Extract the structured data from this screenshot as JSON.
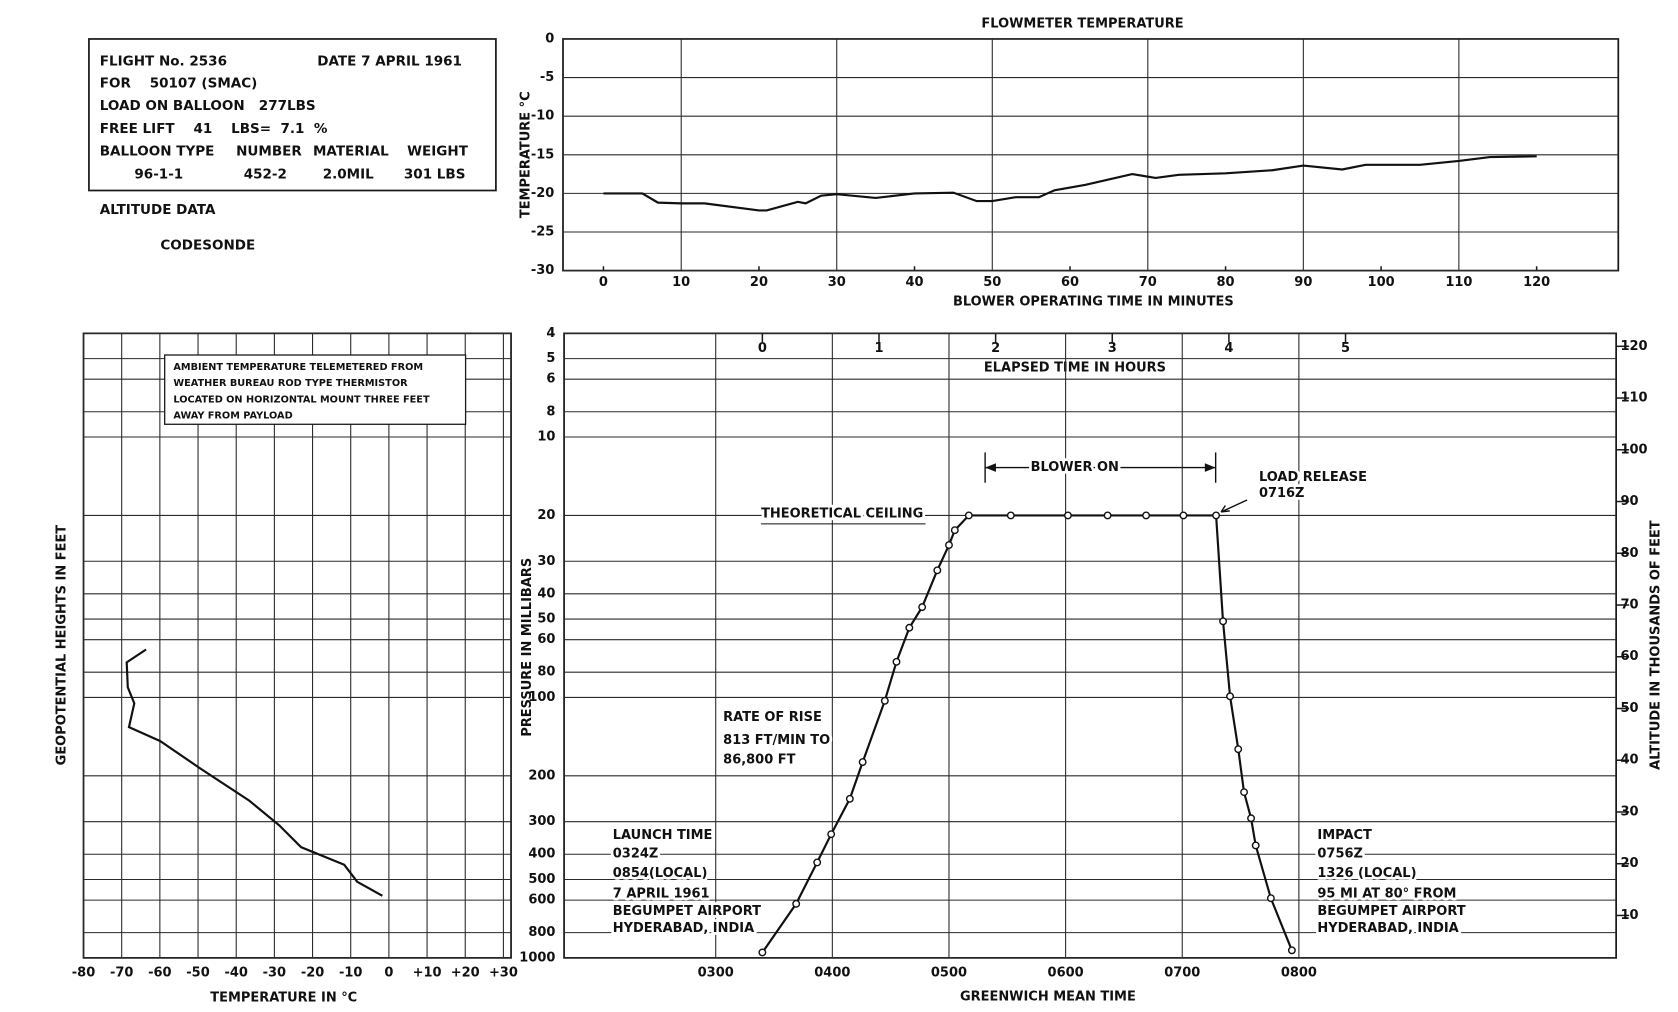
{
  "info": {
    "flight": "FLIGHT No. 2536",
    "date": "DATE 7 APRIL 1961",
    "for": "FOR    50107 (SMAC)",
    "load": "LOAD ON BALLOON   277LBS",
    "free_lift": "FREE LIFT    41    LBS=  7.1  %",
    "balloon_header": [
      "BALLOON TYPE",
      "NUMBER",
      "MATERIAL",
      "WEIGHT"
    ],
    "balloon_row": [
      "96-1-1",
      "452-2",
      "2.0MIL",
      "301 LBS"
    ],
    "altitude_data": "ALTITUDE DATA",
    "codesonde": "CODESONDE"
  },
  "chart_data": [
    {
      "type": "line",
      "title": "FLOWMETER TEMPERATURE",
      "x_label": "BLOWER OPERATING TIME IN MINUTES",
      "y_label": "TEMPERATURE °C",
      "x": [
        0,
        5,
        7,
        10,
        13,
        20,
        21,
        25,
        26,
        28,
        30,
        35,
        40,
        45,
        48,
        50,
        53,
        56,
        58,
        62,
        68,
        71,
        74,
        80,
        86,
        90,
        95,
        98,
        105,
        110,
        114,
        120
      ],
      "values": [
        -20,
        -20,
        -21.2,
        -21.3,
        -21.3,
        -22.2,
        -22.2,
        -21.1,
        -21.3,
        -20.3,
        -20.1,
        -20.6,
        -20,
        -19.9,
        -21,
        -21,
        -20.5,
        -20.5,
        -19.6,
        -18.9,
        -17.5,
        -18,
        -17.6,
        -17.4,
        -17,
        -16.4,
        -16.9,
        -16.3,
        -16.3,
        -15.8,
        -15.3,
        -15.2
      ],
      "color": "#111111",
      "xlim": [
        -5.2,
        130.5
      ],
      "ylim": [
        -30,
        0
      ],
      "xticks": [
        0,
        10,
        20,
        30,
        40,
        50,
        60,
        70,
        80,
        90,
        100,
        110,
        120
      ],
      "yticks": [
        -30,
        -25,
        -20,
        -15,
        -10,
        -5,
        0
      ],
      "grid": true
    },
    {
      "type": "line",
      "x_label": "TEMPERATURE IN °C",
      "y_label": "GEOPOTENTIAL HEIGHTS IN FEET",
      "note": [
        "AMBIENT TEMPERATURE TELEMETERED FROM",
        "WEATHER BUREAU ROD TYPE THERMISTOR",
        "LOCATED ON HORIZONTAL MOUNT THREE FEET",
        "AWAY FROM PAYLOAD"
      ],
      "x": [
        -63.6,
        -68.7,
        -68.4,
        -66.7,
        -68.1,
        -59.9,
        -49.4,
        -36.6,
        -28.7,
        -23,
        -11.7,
        -8.3,
        -1.7
      ],
      "values": [
        61.4,
        58.9,
        54.1,
        51,
        46.4,
        43.7,
        38.4,
        32.2,
        27.4,
        23.2,
        19.8,
        16.5,
        13.8
      ],
      "color": "#111111",
      "xlim": [
        -80,
        32
      ],
      "ylim": [
        1.8,
        122.5
      ],
      "xticks": [
        -80,
        -70,
        -60,
        -50,
        -40,
        -30,
        -20,
        -10,
        0,
        {
          "value": 10,
          "label": "+10"
        },
        {
          "value": 20,
          "label": "+20"
        },
        {
          "value": 30,
          "label": "+30"
        }
      ],
      "grid": true
    },
    {
      "type": "line",
      "x_label": "GREENWICH MEAN TIME",
      "x2_label": "ELAPSED TIME IN HOURS",
      "y_label": "PRESSURE IN MILLIBARS",
      "y2_label": "ALTITUDE IN THOUSANDS OF FEET",
      "x": [
        3.4,
        3.69,
        3.87,
        3.99,
        4.15,
        4.26,
        4.45,
        4.55,
        4.66,
        4.77,
        4.9,
        5.0,
        5.05,
        5.17,
        5.53,
        6.02,
        6.36,
        6.69,
        7.01,
        7.29,
        7.35,
        7.41,
        7.48,
        7.53,
        7.59,
        7.63,
        7.76,
        7.94
      ],
      "values": [
        953,
        620,
        430,
        335,
        245,
        177,
        103,
        73,
        54,
        45,
        32.5,
        26,
        22.8,
        20,
        20,
        20,
        20,
        20,
        20,
        20,
        51,
        99,
        158,
        231,
        291,
        370,
        590,
        935
      ],
      "color": "#111111",
      "marker": "circle",
      "xlim": [
        1.7,
        10.72
      ],
      "x2lim": [
        -1.7,
        7.32
      ],
      "ylim": [
        1000,
        4
      ],
      "y2lim": [
        1.8,
        122.5
      ],
      "log_y": true,
      "xticks": [
        {
          "value": 3,
          "label": "0300"
        },
        {
          "value": 4,
          "label": "0400"
        },
        {
          "value": 5,
          "label": "0500"
        },
        {
          "value": 6,
          "label": "0600"
        },
        {
          "value": 7,
          "label": "0700"
        },
        {
          "value": 8,
          "label": "0800"
        }
      ],
      "x2ticks": [
        0,
        1,
        2,
        3,
        4,
        5
      ],
      "yticks": [
        4,
        5,
        6,
        8,
        10,
        20,
        30,
        40,
        50,
        60,
        80,
        100,
        200,
        300,
        400,
        500,
        600,
        800,
        1000
      ],
      "y2ticks": [
        10,
        20,
        30,
        40,
        50,
        60,
        70,
        80,
        90,
        100,
        110,
        120
      ],
      "grid": true,
      "annotations": {
        "theoretical_ceiling": "THEORETICAL CEILING",
        "blower_on": "BLOWER ON",
        "load_release": "LOAD RELEASE",
        "load_release_time": "0716Z",
        "rate_of_rise": [
          "RATE OF RISE",
          "813 FT/MIN TO",
          "86,800 FT"
        ],
        "launch": [
          "LAUNCH TIME",
          "0324Z",
          "0854(LOCAL)",
          "7 APRIL 1961",
          "BEGUMPET AIRPORT",
          "HYDERABAD, INDIA"
        ],
        "impact": [
          "IMPACT",
          "0756Z",
          "1326 (LOCAL)",
          "95 MI AT 80° FROM",
          "BEGUMPET AIRPORT",
          "HYDERABAD, INDIA"
        ]
      }
    }
  ]
}
